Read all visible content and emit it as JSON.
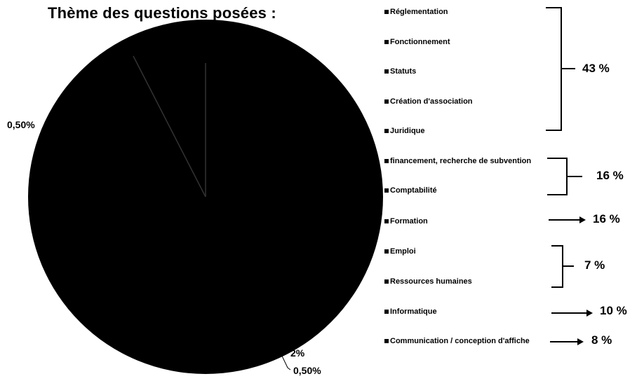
{
  "title": "Thème des questions posées :",
  "chart_data": {
    "type": "pie",
    "title": "Thème des questions posées :",
    "categories": [
      "Réglementation",
      "Fonctionnement",
      "Statuts",
      "Création d'association",
      "Juridique",
      "financement, recherche de subvention",
      "Comptabilité",
      "Formation",
      "Emploi",
      "Ressources humaines",
      "Informatique",
      "Communication / conception d'affiche"
    ],
    "groups": [
      {
        "items": [
          "Réglementation",
          "Fonctionnement",
          "Statuts",
          "Création d'association",
          "Juridique"
        ],
        "value_label": "43 %"
      },
      {
        "items": [
          "financement, recherche de subvention",
          "Comptabilité"
        ],
        "value_label": "16 %"
      },
      {
        "items": [
          "Formation"
        ],
        "value_label": "16 %"
      },
      {
        "items": [
          "Emploi",
          "Ressources humaines"
        ],
        "value_label": "7 %"
      },
      {
        "items": [
          "Informatique"
        ],
        "value_label": "10 %"
      },
      {
        "items": [
          "Communication / conception d'affiche"
        ],
        "value_label": "8 %"
      }
    ],
    "data_labels": [
      "0,50%",
      "2%",
      "0,50%"
    ],
    "legend_position": "right",
    "slice_color": "#000000"
  }
}
